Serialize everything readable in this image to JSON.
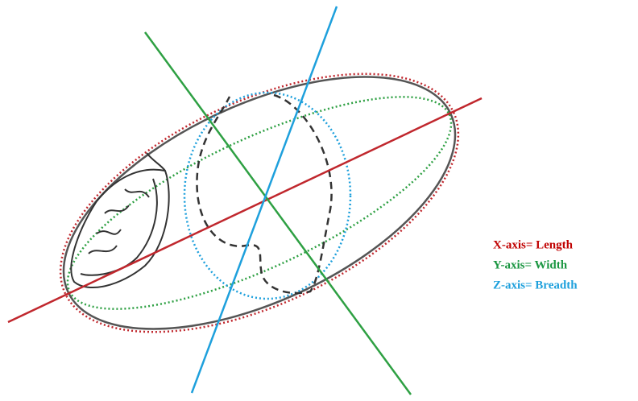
{
  "legend": {
    "items": [
      {
        "label": "X-axis= Length"
      },
      {
        "label": "Y-axis= Width"
      },
      {
        "label": "Z-axis= Breadth"
      }
    ]
  }
}
